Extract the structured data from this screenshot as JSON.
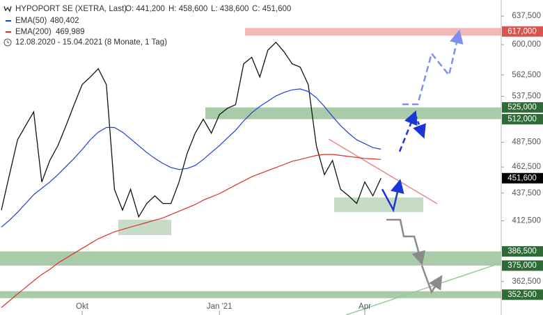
{
  "chart_data": {
    "type": "line",
    "title": "HYPOPORT SE (XETRA, Last)",
    "ohlc": [
      "O: 441,200",
      "H: 458,600",
      "L: 438,600",
      "C: 451,600"
    ],
    "period": "12.08.2020 - 15.04.2021",
    "period_note": "(8 Monate, 1 Tag)",
    "log_scale": true,
    "ylim": [
      337.6,
      659.7
    ],
    "yticks": [
      {
        "value": 637.5,
        "label": "637,500"
      },
      {
        "value": 600,
        "label": "600,000"
      },
      {
        "value": 562.5,
        "label": "562,500"
      },
      {
        "value": 537.5,
        "label": "537,500"
      },
      {
        "value": 487.5,
        "label": "487,500"
      },
      {
        "value": 462.5,
        "label": "462,500"
      },
      {
        "value": 437.5,
        "label": "437,500"
      },
      {
        "value": 412.5,
        "label": "412,500"
      },
      {
        "value": 362.5,
        "label": "362,500"
      }
    ],
    "categories": [
      null,
      null,
      null,
      null,
      null,
      null,
      null,
      null,
      null,
      null,
      "Okt",
      null,
      null,
      null,
      null,
      null,
      null,
      null,
      null,
      null,
      null,
      null,
      null,
      null,
      null,
      null,
      null,
      "Jan '21",
      null,
      null,
      null,
      null,
      null,
      null,
      null,
      null,
      null,
      null,
      null,
      null,
      null,
      null,
      null,
      null,
      null,
      "Apr",
      null,
      null,
      null,
      null,
      null,
      null,
      null,
      null,
      null,
      null,
      null,
      null,
      null,
      null,
      null,
      null
    ],
    "series": [
      {
        "name": "HYPOPORT SE",
        "color": "#111111",
        "values": [
          422,
          455,
          490,
          505,
          520,
          448,
          469,
          484,
          505,
          528,
          551,
          560,
          570,
          551,
          441,
          422,
          441,
          416,
          428,
          435,
          428,
          428,
          448,
          476,
          497,
          512,
          497,
          517,
          524,
          528,
          576,
          584,
          560,
          593,
          603,
          591,
          576,
          572,
          551,
          484,
          455,
          469,
          441,
          435,
          428,
          448,
          435,
          451.6,
          null,
          null,
          null,
          null,
          null,
          null,
          null,
          null,
          null,
          null,
          null,
          null,
          null,
          null
        ]
      },
      {
        "name": "EMA(50)",
        "color": "#1f3fd6",
        "legend_value": "480,402",
        "values": [
          407,
          413,
          420,
          428,
          436,
          442,
          448,
          455,
          463,
          471,
          480,
          490,
          498,
          503,
          503,
          498,
          491,
          484,
          477,
          471,
          466,
          462,
          460,
          461,
          464,
          470,
          477,
          484,
          492,
          500,
          510,
          519,
          526,
          532,
          538,
          542,
          545,
          546,
          543,
          536,
          526,
          515,
          505,
          497,
          490,
          486,
          482,
          480.402,
          null,
          null,
          null,
          null,
          null,
          null,
          null,
          null,
          null,
          null,
          null,
          null,
          null,
          null
        ]
      },
      {
        "name": "EMA(200)",
        "color": "#d9302a",
        "legend_value": "469,989",
        "values": [
          343,
          348,
          353,
          358,
          363,
          368,
          372,
          377,
          381,
          385,
          389,
          393,
          397,
          400,
          403,
          405,
          407,
          409,
          411,
          413,
          415,
          418,
          421,
          424,
          427,
          431,
          434,
          437,
          441,
          445,
          449,
          453,
          456,
          459,
          462,
          465,
          468,
          470,
          472,
          474,
          475,
          475,
          474,
          473,
          472,
          471,
          470.5,
          469.989,
          null,
          null,
          null,
          null,
          null,
          null,
          null,
          null,
          null,
          null,
          null,
          null,
          null,
          null
        ]
      }
    ],
    "levels": [
      {
        "value": 617,
        "label": "617,000",
        "color": "#d9534f"
      },
      {
        "value": 525,
        "label": "525,000",
        "color": "#2e6b36"
      },
      {
        "value": 512,
        "label": "512,000",
        "color": "#2e6b36"
      },
      {
        "value": 386.5,
        "label": "386,500",
        "color": "#2e6b36"
      },
      {
        "value": 375,
        "label": "375,000",
        "color": "#2e6b36"
      },
      {
        "value": 352.5,
        "label": "352,500",
        "color": "#2e6b36"
      },
      {
        "value": 451.6,
        "label": "451,600",
        "color": "#000000"
      }
    ]
  }
}
